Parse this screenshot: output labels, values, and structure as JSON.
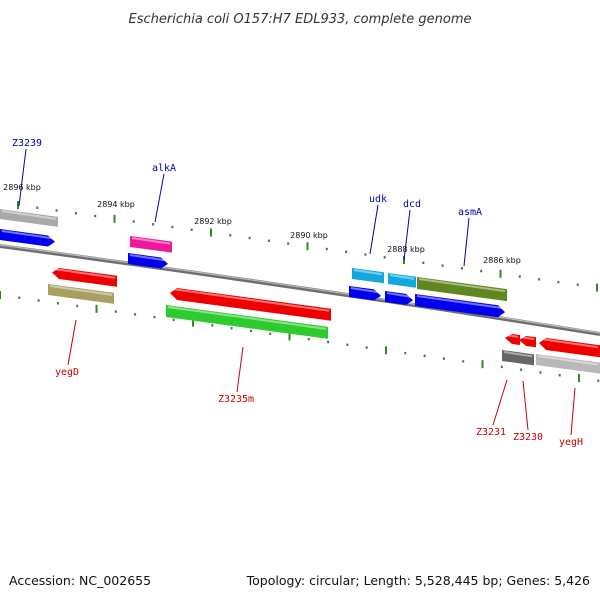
{
  "title": "Escherichia coli O157:H7 EDL933, complete genome",
  "footer": {
    "accession": "Accession: NC_002655",
    "summary": "Topology: circular; Length: 5,528,445 bp; Genes: 5,426"
  },
  "scale_labels": [
    "2896 kbp",
    "2894 kbp",
    "2892 kbp",
    "2890 kbp",
    "2888 kbp",
    "2886 kbp"
  ],
  "colors": {
    "forward_label": "#0000aa",
    "reverse_label": "#cc0000",
    "backbone": "#777777",
    "ticks": "#2e8b22"
  },
  "genes": [
    {
      "name": "Z3239",
      "strand": "forward"
    },
    {
      "name": "alkA",
      "strand": "forward"
    },
    {
      "name": "udk",
      "strand": "forward"
    },
    {
      "name": "dcd",
      "strand": "forward"
    },
    {
      "name": "asmA",
      "strand": "forward"
    },
    {
      "name": "yegD",
      "strand": "reverse"
    },
    {
      "name": "Z3235m",
      "strand": "reverse"
    },
    {
      "name": "Z3231",
      "strand": "reverse"
    },
    {
      "name": "Z3230",
      "strand": "reverse"
    },
    {
      "name": "yegH",
      "strand": "reverse"
    }
  ]
}
